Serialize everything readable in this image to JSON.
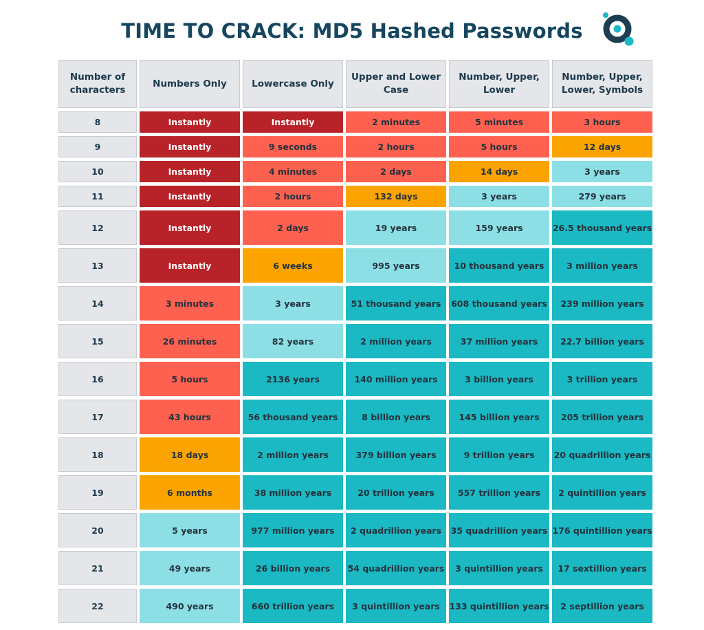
{
  "title": "TIME TO CRACK: MD5 Hashed Passwords",
  "logo_icon": "circular-logo-icon",
  "colors": {
    "title": "#16465f",
    "header_bg": "#e4e6ea",
    "dark-red": "#b82329",
    "red": "#ff6150",
    "orange": "#fba400",
    "light-teal": "#8ddfe6",
    "teal": "#1ab9c3"
  },
  "chart_data": {
    "type": "table",
    "title": "TIME TO CRACK: MD5 Hashed Passwords",
    "columns": [
      "Number of characters",
      "Numbers Only",
      "Lowercase Only",
      "Upper and Lower Case",
      "Number, Upper, Lower",
      "Number, Upper, Lower, Symbols"
    ],
    "rows": [
      {
        "length": "8",
        "values": [
          "Instantly",
          "Instantly",
          "2 minutes",
          "5 minutes",
          "3 hours"
        ],
        "colors": [
          "dark-red",
          "dark-red",
          "red",
          "red",
          "red"
        ]
      },
      {
        "length": "9",
        "values": [
          "Instantly",
          "9 seconds",
          "2 hours",
          "5 hours",
          "12 days"
        ],
        "colors": [
          "dark-red",
          "red",
          "red",
          "red",
          "orange"
        ]
      },
      {
        "length": "10",
        "values": [
          "Instantly",
          "4 minutes",
          "2 days",
          "14 days",
          "3 years"
        ],
        "colors": [
          "dark-red",
          "red",
          "red",
          "orange",
          "light-teal"
        ]
      },
      {
        "length": "11",
        "values": [
          "Instantly",
          "2 hours",
          "132 days",
          "3 years",
          "279 years"
        ],
        "colors": [
          "dark-red",
          "red",
          "orange",
          "light-teal",
          "light-teal"
        ]
      },
      {
        "length": "12",
        "values": [
          "Instantly",
          "2 days",
          "19 years",
          "159 years",
          "26.5 thousand years"
        ],
        "colors": [
          "dark-red",
          "red",
          "light-teal",
          "light-teal",
          "teal"
        ]
      },
      {
        "length": "13",
        "values": [
          "Instantly",
          "6 weeks",
          "995 years",
          "10 thousand years",
          "3 million years"
        ],
        "colors": [
          "dark-red",
          "orange",
          "light-teal",
          "teal",
          "teal"
        ]
      },
      {
        "length": "14",
        "values": [
          "3 minutes",
          "3 years",
          "51 thousand years",
          "608 thousand years",
          "239 million years"
        ],
        "colors": [
          "red",
          "light-teal",
          "teal",
          "teal",
          "teal"
        ]
      },
      {
        "length": "15",
        "values": [
          "26 minutes",
          "82 years",
          "2 million years",
          "37 million years",
          "22.7 billion years"
        ],
        "colors": [
          "red",
          "light-teal",
          "teal",
          "teal",
          "teal"
        ]
      },
      {
        "length": "16",
        "values": [
          "5 hours",
          "2136 years",
          "140 million years",
          "3 billion years",
          "3 trillion years"
        ],
        "colors": [
          "red",
          "teal",
          "teal",
          "teal",
          "teal"
        ]
      },
      {
        "length": "17",
        "values": [
          "43 hours",
          "56 thousand years",
          "8 billion years",
          "145  billion years",
          "205 trillion years"
        ],
        "colors": [
          "red",
          "teal",
          "teal",
          "teal",
          "teal"
        ]
      },
      {
        "length": "18",
        "values": [
          "18 days",
          "2 million years",
          "379 billion years",
          "9 trillion years",
          "20 quadrillion years"
        ],
        "colors": [
          "orange",
          "teal",
          "teal",
          "teal",
          "teal"
        ]
      },
      {
        "length": "19",
        "values": [
          "6 months",
          "38 million years",
          "20 trillion years",
          "557 trillion years",
          "2 quintillion years"
        ],
        "colors": [
          "orange",
          "teal",
          "teal",
          "teal",
          "teal"
        ]
      },
      {
        "length": "20",
        "values": [
          "5 years",
          "977 million years",
          "2 quadrillion years",
          "35 quadrillion years",
          "176 quintillion years"
        ],
        "colors": [
          "light-teal",
          "teal",
          "teal",
          "teal",
          "teal"
        ]
      },
      {
        "length": "21",
        "values": [
          "49 years",
          "26 billion years",
          "54 quadrillion years",
          "3 quintillion years",
          "17 sextillion years"
        ],
        "colors": [
          "light-teal",
          "teal",
          "teal",
          "teal",
          "teal"
        ]
      },
      {
        "length": "22",
        "values": [
          "490 years",
          "660 trillion years",
          "3 quintillion years",
          "133 quintillion years",
          "2 septillion years"
        ],
        "colors": [
          "light-teal",
          "teal",
          "teal",
          "teal",
          "teal"
        ]
      }
    ]
  }
}
